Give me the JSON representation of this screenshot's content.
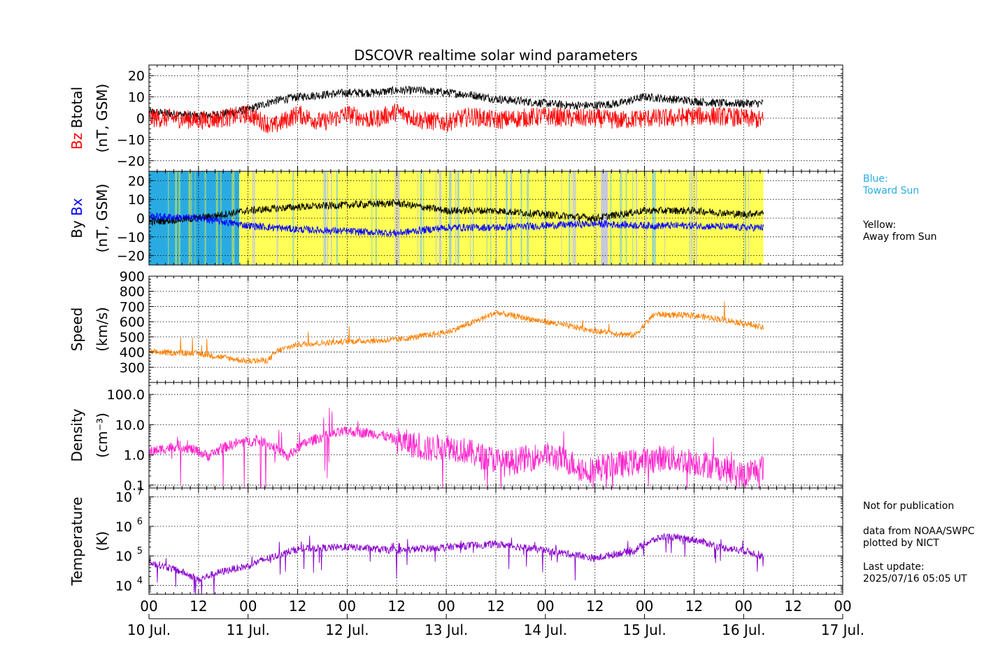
{
  "chart_data": {
    "type": "line",
    "title": "DSCOVR realtime solar wind parameters",
    "x_range": [
      "2025-07-10T00:00Z",
      "2025-07-17T00:00Z"
    ],
    "x_tick_hours": [
      "00",
      "12",
      "00",
      "12",
      "00",
      "12",
      "00",
      "12",
      "00",
      "12",
      "00",
      "12",
      "00",
      "12",
      "00"
    ],
    "x_day_labels": [
      "10 Jul.",
      "11 Jul.",
      "12 Jul.",
      "13 Jul.",
      "14 Jul.",
      "15 Jul.",
      "16 Jul.",
      "17 Jul."
    ],
    "data_end_day": 6.2,
    "panels": [
      {
        "id": "magnetic",
        "ylabel_parts": [
          "Bz",
          "Btotal"
        ],
        "ylabel_units": "(nT, GSM)",
        "ylim": [
          -25,
          25
        ],
        "ticks": [
          -20,
          -10,
          0,
          10,
          20
        ],
        "tick_labels": [
          "−20",
          "−10",
          "0",
          "10",
          "20"
        ],
        "series": [
          {
            "name": "Btotal",
            "color": "#000000",
            "x": [
              0,
              0.25,
              0.5,
              0.75,
              1,
              1.25,
              1.5,
              1.75,
              2,
              2.25,
              2.5,
              2.75,
              3,
              3.25,
              3.5,
              3.75,
              4,
              4.25,
              4.5,
              4.75,
              5,
              5.25,
              5.5,
              5.75,
              6,
              6.2
            ],
            "y": [
              3,
              2,
              1,
              2,
              4,
              8,
              10,
              11,
              12,
              12,
              13,
              13,
              12,
              11,
              9,
              8,
              7,
              6,
              6,
              7,
              10,
              9,
              8,
              7,
              7,
              7
            ]
          },
          {
            "name": "Bz",
            "color": "#ff0000",
            "x": [
              0,
              0.25,
              0.5,
              0.75,
              1,
              1.25,
              1.5,
              1.75,
              2,
              2.25,
              2.5,
              2.75,
              3,
              3.25,
              3.5,
              3.75,
              4,
              4.25,
              4.5,
              4.75,
              5,
              5.25,
              5.5,
              5.75,
              6,
              6.2
            ],
            "y": [
              0,
              0,
              -1,
              0,
              2,
              -4,
              2,
              -2,
              2,
              -1,
              3,
              -1,
              -2,
              1,
              -1,
              0,
              1,
              0,
              0,
              -1,
              0,
              0,
              1,
              1,
              0,
              -1
            ]
          }
        ]
      },
      {
        "id": "sector",
        "ylabel_parts": [
          "By",
          "Bx"
        ],
        "ylabel_units": "(nT, GSM)",
        "ylim": [
          -25,
          25
        ],
        "ticks": [
          -20,
          -10,
          0,
          10,
          20
        ],
        "tick_labels": [
          "−20",
          "−10",
          "0",
          "10",
          "20"
        ],
        "sector_colors": {
          "toward": "#29abe2",
          "away": "#ffff55",
          "mixed": "#c8c8dc"
        },
        "sectors": [
          {
            "start": 0,
            "end": 0.91,
            "polarity": "toward"
          },
          {
            "start": 0.91,
            "end": 4.56,
            "polarity": "away"
          },
          {
            "start": 4.56,
            "end": 4.63,
            "polarity": "mixed"
          },
          {
            "start": 4.63,
            "end": 6.2,
            "polarity": "away"
          }
        ],
        "series": [
          {
            "name": "By",
            "color": "#000000",
            "x": [
              0,
              0.5,
              1,
              1.5,
              2,
              2.5,
              3,
              3.5,
              4,
              4.5,
              5,
              5.5,
              6,
              6.2
            ],
            "y": [
              -2,
              0,
              4,
              6,
              7,
              8,
              4,
              4,
              2,
              0,
              4,
              4,
              2,
              3
            ]
          },
          {
            "name": "Bx",
            "color": "#0000ff",
            "x": [
              0,
              0.5,
              1,
              1.5,
              2,
              2.5,
              3,
              3.5,
              4,
              4.5,
              5,
              5.5,
              6,
              6.2
            ],
            "y": [
              1,
              0,
              -4,
              -6,
              -7,
              -8,
              -5,
              -5,
              -4,
              -3,
              -4,
              -4,
              -5,
              -5
            ]
          }
        ]
      },
      {
        "id": "speed",
        "ylabel_parts": [
          "Speed"
        ],
        "ylabel_units": "(km/s)",
        "ylim": [
          200,
          900
        ],
        "ticks": [
          300,
          400,
          500,
          600,
          700,
          800,
          900
        ],
        "tick_labels": [
          "300",
          "400",
          "500",
          "600",
          "700",
          "800",
          "900"
        ],
        "series": [
          {
            "name": "Speed",
            "color": "#ff8000",
            "x": [
              0,
              0.5,
              0.75,
              1,
              1.2,
              1.3,
              1.5,
              2,
              2.5,
              3,
              3.25,
              3.5,
              4,
              4.5,
              4.9,
              5.1,
              5.5,
              5.75,
              6,
              6.2
            ],
            "y": [
              400,
              390,
              365,
              340,
              345,
              410,
              450,
              470,
              480,
              530,
              590,
              660,
              600,
              540,
              510,
              650,
              640,
              620,
              590,
              560
            ]
          }
        ]
      },
      {
        "id": "density",
        "ylabel_parts": [
          "Density"
        ],
        "ylabel_units": "(cm⁻³)",
        "log": true,
        "ylim": [
          0.08,
          250
        ],
        "ticks": [
          0.1,
          1,
          10,
          100
        ],
        "tick_labels": [
          "0.1",
          "1.0",
          "10.0",
          "100.0"
        ],
        "series": [
          {
            "name": "Density",
            "color": "#ff22cc",
            "x": [
              0,
              0.3,
              0.6,
              0.9,
              1.1,
              1.4,
              1.7,
              2,
              2.3,
              2.5,
              2.8,
              3,
              3.3,
              3.6,
              4,
              4.4,
              4.8,
              5.2,
              5.6,
              6,
              6.2
            ],
            "y": [
              1.2,
              2,
              0.9,
              2.5,
              3,
              0.8,
              3.5,
              6,
              5,
              3,
              1.5,
              2,
              1,
              0.5,
              1,
              0.3,
              0.5,
              0.8,
              0.5,
              0.2,
              0.4
            ]
          }
        ]
      },
      {
        "id": "temperature",
        "ylabel_parts": [
          "Temperature"
        ],
        "ylabel_units": "(K)",
        "log": true,
        "ylim": [
          5000,
          20000000
        ],
        "ticks": [
          10000,
          100000,
          1000000,
          10000000
        ],
        "tick_labels": [
          [
            "10",
            "4"
          ],
          [
            "10",
            "5"
          ],
          [
            "10",
            "6"
          ],
          [
            "10",
            "7"
          ]
        ],
        "series": [
          {
            "name": "Temperature",
            "color": "#8800cc",
            "x": [
              0,
              0.25,
              0.5,
              0.75,
              1,
              1.25,
              1.5,
              2,
              2.5,
              3,
              3.5,
              4,
              4.5,
              4.9,
              5.2,
              5.5,
              5.75,
              6,
              6.2
            ],
            "y": [
              60000,
              35000,
              15000,
              30000,
              45000,
              90000,
              170000,
              200000,
              150000,
              200000,
              250000,
              150000,
              80000,
              150000,
              450000,
              350000,
              200000,
              150000,
              100000
            ]
          }
        ]
      }
    ]
  },
  "legend": {
    "blue_label": "Blue:\nToward Sun",
    "yellow_label": "Yellow:\nAway from Sun"
  },
  "notes": {
    "disclaimer": "Not for publication",
    "source": "data from NOAA/SWPC\nplotted by NICT",
    "last_update": "Last update:\n2025/07/16 05:05 UT"
  }
}
